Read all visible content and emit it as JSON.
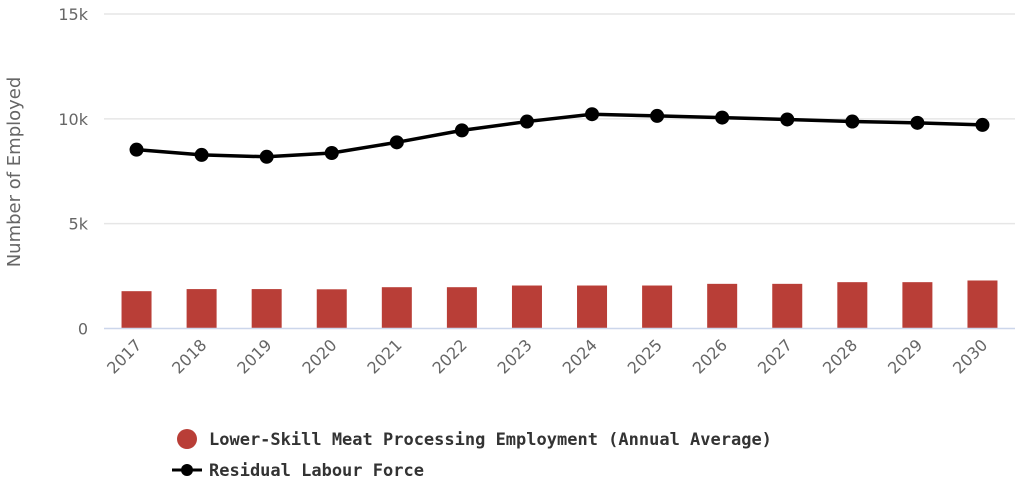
{
  "chart_data": {
    "type": "bar+line",
    "title": "",
    "xlabel": "",
    "ylabel": "Number of Employed",
    "ylim": [
      0,
      15000
    ],
    "yticks": [
      0,
      5000,
      10000,
      15000
    ],
    "ytick_labels": [
      "0",
      "5k",
      "10k",
      "15k"
    ],
    "grid": true,
    "legend_position": "bottom",
    "categories": [
      "2017",
      "2018",
      "2019",
      "2020",
      "2021",
      "2022",
      "2023",
      "2024",
      "2025",
      "2026",
      "2027",
      "2028",
      "2029",
      "2030"
    ],
    "series": [
      {
        "name": "Lower-Skill Meat Processing Employment (Annual Average)",
        "type": "bar",
        "color": "#b93e37",
        "values": [
          1780,
          1880,
          1880,
          1870,
          1970,
          1970,
          2050,
          2050,
          2050,
          2130,
          2130,
          2210,
          2210,
          2290
        ]
      },
      {
        "name": "Residual Labour Force",
        "type": "line",
        "color": "#000000",
        "values": [
          8530,
          8280,
          8190,
          8370,
          8880,
          9450,
          9870,
          10220,
          10140,
          10060,
          9970,
          9870,
          9810,
          9710
        ]
      }
    ]
  }
}
